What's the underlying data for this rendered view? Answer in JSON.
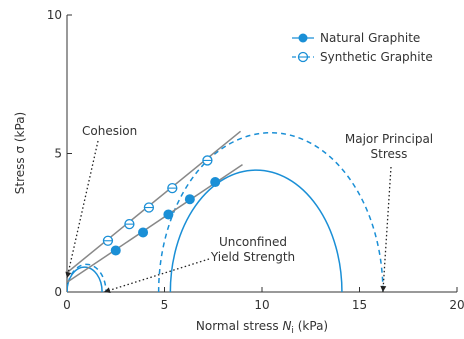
{
  "chart_data": {
    "type": "scatter",
    "xlabel_main": "Normal stress ",
    "xlabel_symbol": "N",
    "xlabel_sub": "i",
    "xlabel_unit": " (kPa)",
    "ylabel": "Stress σ (kPa)",
    "xlim": [
      0,
      20
    ],
    "ylim": [
      0,
      10
    ],
    "x_ticks": [
      0,
      5,
      10,
      15,
      20
    ],
    "y_ticks": [
      0,
      5,
      10
    ],
    "grid": false,
    "legend_position": "top-right",
    "series": [
      {
        "name": "Natural Graphite",
        "marker": "filled-circle",
        "line_style": "solid",
        "color": "#1a8fd6",
        "points": [
          [
            2.5,
            1.5
          ],
          [
            3.9,
            2.15
          ],
          [
            5.2,
            2.8
          ],
          [
            6.3,
            3.35
          ],
          [
            7.6,
            3.97
          ]
        ],
        "fit_line": {
          "x": [
            0.0,
            9.0
          ],
          "y": [
            0.35,
            4.6
          ]
        },
        "mohr_circles": [
          {
            "center": 0.9,
            "radius": 0.9
          },
          {
            "center": 9.7,
            "radius": 4.4
          }
        ]
      },
      {
        "name": "Synthetic Graphite",
        "marker": "open-circle",
        "line_style": "dashed",
        "color": "#1a8fd6",
        "points": [
          [
            2.1,
            1.85
          ],
          [
            3.2,
            2.45
          ],
          [
            4.2,
            3.05
          ],
          [
            5.4,
            3.75
          ],
          [
            7.2,
            4.75
          ]
        ],
        "fit_line": {
          "x": [
            0.0,
            8.9
          ],
          "y": [
            0.7,
            5.8
          ]
        },
        "mohr_circles": [
          {
            "center": 1.0,
            "radius": 1.0
          },
          {
            "center": 10.45,
            "radius": 5.75
          }
        ]
      }
    ],
    "annotations": [
      {
        "lines": [
          "Cohesion"
        ],
        "target": [
          0.0,
          0.5
        ]
      },
      {
        "lines": [
          "Unconfined",
          "Yield Strength"
        ],
        "target": [
          1.9,
          0.0
        ]
      },
      {
        "lines": [
          "Major Principal",
          "Stress"
        ],
        "target": [
          16.2,
          0.0
        ]
      }
    ]
  }
}
